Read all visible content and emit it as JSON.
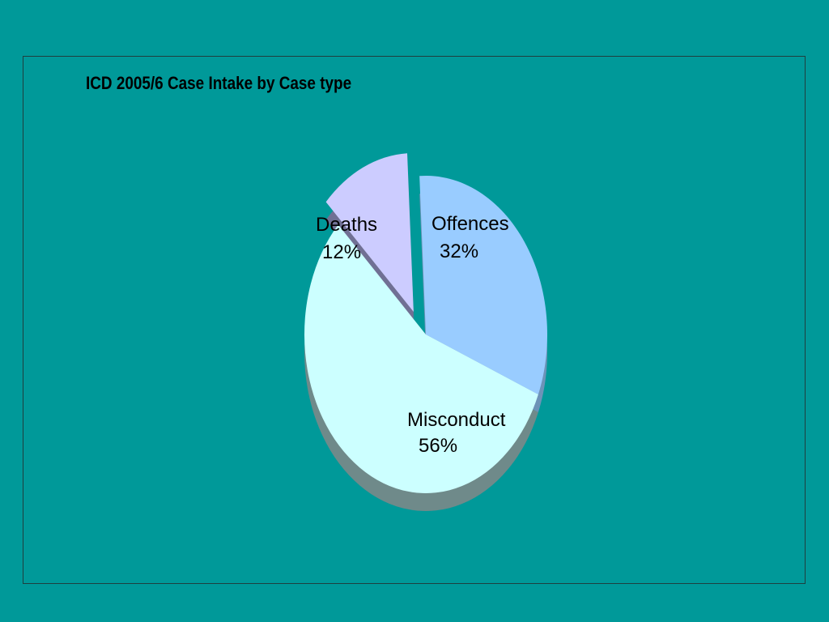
{
  "chart_data": {
    "type": "pie",
    "title": "ICD 2005/6 Case Intake by Case type",
    "slices": [
      {
        "name": "Offences",
        "value": 32,
        "label": "32%",
        "color": "#99ccff",
        "side_color": "#6d93b8",
        "exploded": false
      },
      {
        "name": "Misconduct",
        "value": 56,
        "label": "56%",
        "color": "#ccffff",
        "side_color": "#6f8a8a",
        "exploded": false
      },
      {
        "name": "Deaths",
        "value": 12,
        "label": "12%",
        "color": "#ccccff",
        "side_color": "#707094",
        "exploded": true
      }
    ],
    "style": "3d-exploded",
    "legend": "none"
  },
  "colors": {
    "background": "#009999",
    "frame": "#1f3f3f"
  }
}
